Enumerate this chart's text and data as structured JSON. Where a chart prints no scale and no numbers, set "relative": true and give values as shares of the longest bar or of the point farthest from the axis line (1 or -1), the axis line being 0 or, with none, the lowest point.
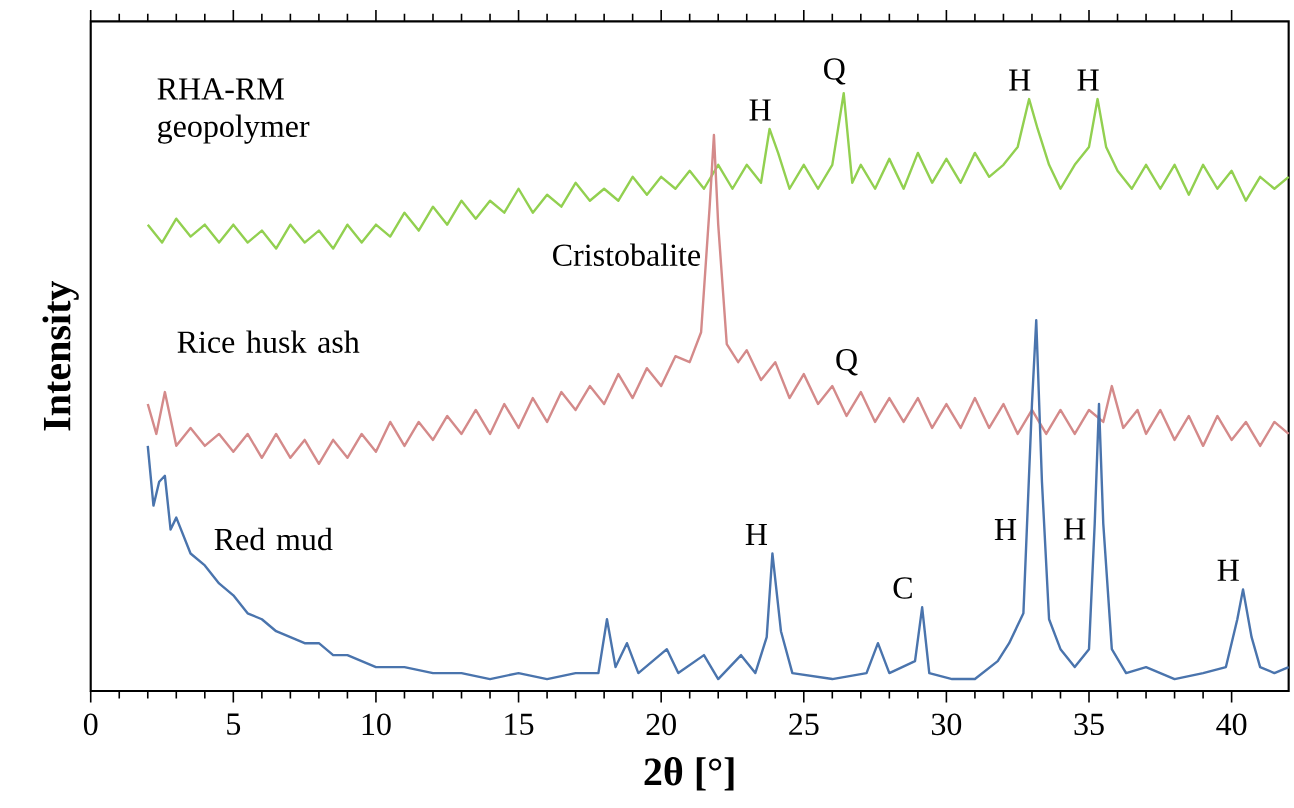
{
  "chart_data": {
    "type": "line",
    "xlabel": "**2θ** [°]",
    "ylabel": "Intensity",
    "relative": true,
    "legend": false,
    "grid": false,
    "tick_labels": "x",
    "xlim": [
      0,
      42
    ],
    "xticks": [
      0,
      5,
      10,
      15,
      20,
      25,
      30,
      35,
      40
    ],
    "series": [
      {
        "name": "RHA-RM geopolymer",
        "color": "#92d050",
        "x": [
          2.0,
          2.5,
          3,
          3.5,
          4,
          4.5,
          5,
          5.5,
          6,
          6.5,
          7,
          7.5,
          8,
          8.5,
          9,
          9.5,
          10,
          10.5,
          11,
          11.5,
          12,
          12.5,
          13,
          13.5,
          14,
          14.5,
          15,
          15.5,
          16,
          16.5,
          17,
          17.5,
          18,
          18.5,
          19,
          19.5,
          20,
          20.5,
          21,
          21.5,
          22,
          22.5,
          23,
          23.5,
          23.8,
          24.1,
          24.5,
          25,
          25.5,
          26,
          26.4,
          26.7,
          27,
          27.5,
          28,
          28.5,
          29,
          29.5,
          30,
          30.5,
          31,
          31.5,
          32,
          32.5,
          32.9,
          33.2,
          33.6,
          34,
          34.5,
          35,
          35.3,
          35.6,
          36,
          36.5,
          37,
          37.5,
          38,
          38.5,
          39,
          39.5,
          40,
          40.5,
          41,
          41.5,
          42
        ],
        "values": [
          0.78,
          0.75,
          0.79,
          0.76,
          0.78,
          0.75,
          0.78,
          0.75,
          0.77,
          0.74,
          0.78,
          0.75,
          0.77,
          0.74,
          0.78,
          0.75,
          0.78,
          0.76,
          0.8,
          0.77,
          0.81,
          0.78,
          0.82,
          0.79,
          0.82,
          0.8,
          0.84,
          0.8,
          0.83,
          0.81,
          0.85,
          0.82,
          0.84,
          0.82,
          0.86,
          0.83,
          0.86,
          0.84,
          0.87,
          0.84,
          0.88,
          0.84,
          0.88,
          0.85,
          0.94,
          0.9,
          0.84,
          0.88,
          0.84,
          0.88,
          1.0,
          0.85,
          0.88,
          0.84,
          0.89,
          0.84,
          0.9,
          0.85,
          0.89,
          0.85,
          0.9,
          0.86,
          0.88,
          0.91,
          0.99,
          0.94,
          0.88,
          0.84,
          0.88,
          0.91,
          0.99,
          0.91,
          0.87,
          0.84,
          0.88,
          0.84,
          0.88,
          0.83,
          0.88,
          0.84,
          0.87,
          0.82,
          0.86,
          0.84,
          0.86
        ]
      },
      {
        "name": "Rice husk ash",
        "color": "#d48a8a",
        "x": [
          2.0,
          2.3,
          2.6,
          3,
          3.5,
          4,
          4.5,
          5,
          5.5,
          6,
          6.5,
          7,
          7.5,
          8,
          8.5,
          9,
          9.5,
          10,
          10.5,
          11,
          11.5,
          12,
          12.5,
          13,
          13.5,
          14,
          14.5,
          15,
          15.5,
          16,
          16.5,
          17,
          17.5,
          18,
          18.5,
          19,
          19.5,
          20,
          20.5,
          21,
          21.4,
          21.7,
          21.85,
          22.0,
          22.3,
          22.7,
          23,
          23.5,
          24,
          24.5,
          25,
          25.5,
          26,
          26.5,
          27,
          27.5,
          28,
          28.5,
          29,
          29.5,
          30,
          30.5,
          31,
          31.5,
          32,
          32.5,
          33,
          33.5,
          34,
          34.5,
          35,
          35.5,
          35.8,
          36.2,
          36.7,
          37,
          37.5,
          38,
          38.5,
          39,
          39.5,
          40,
          40.5,
          41,
          41.5,
          42
        ],
        "values": [
          0.48,
          0.43,
          0.5,
          0.41,
          0.44,
          0.41,
          0.43,
          0.4,
          0.43,
          0.39,
          0.43,
          0.39,
          0.42,
          0.38,
          0.42,
          0.39,
          0.43,
          0.4,
          0.45,
          0.41,
          0.45,
          0.42,
          0.46,
          0.43,
          0.47,
          0.43,
          0.48,
          0.44,
          0.49,
          0.45,
          0.5,
          0.47,
          0.51,
          0.48,
          0.53,
          0.49,
          0.54,
          0.51,
          0.56,
          0.55,
          0.6,
          0.81,
          0.93,
          0.78,
          0.58,
          0.55,
          0.57,
          0.52,
          0.55,
          0.49,
          0.53,
          0.48,
          0.51,
          0.46,
          0.5,
          0.45,
          0.49,
          0.45,
          0.49,
          0.44,
          0.48,
          0.44,
          0.49,
          0.44,
          0.48,
          0.43,
          0.47,
          0.43,
          0.47,
          0.43,
          0.47,
          0.45,
          0.51,
          0.44,
          0.47,
          0.43,
          0.47,
          0.42,
          0.46,
          0.41,
          0.46,
          0.42,
          0.45,
          0.41,
          0.45,
          0.43
        ]
      },
      {
        "name": "Red mud",
        "color": "#4a74ad",
        "x": [
          2.0,
          2.2,
          2.4,
          2.6,
          2.8,
          3,
          3.5,
          4,
          4.5,
          5,
          5.5,
          6,
          6.5,
          7,
          7.5,
          8,
          8.5,
          9,
          10,
          11,
          12,
          13,
          14,
          15,
          16,
          17,
          17.8,
          18.1,
          18.4,
          18.8,
          19.2,
          20.2,
          20.6,
          21.5,
          22,
          22.8,
          23.3,
          23.7,
          23.9,
          24.2,
          24.6,
          26,
          27.2,
          27.6,
          28,
          28.9,
          29.15,
          29.4,
          30.2,
          31,
          31.8,
          32.2,
          32.7,
          33.0,
          33.15,
          33.35,
          33.6,
          34.0,
          34.5,
          35.0,
          35.2,
          35.35,
          35.5,
          35.8,
          36.3,
          37,
          38,
          39,
          39.8,
          40.2,
          40.4,
          40.7,
          41,
          41.5,
          42
        ],
        "values": [
          0.41,
          0.31,
          0.35,
          0.36,
          0.27,
          0.29,
          0.23,
          0.21,
          0.18,
          0.16,
          0.13,
          0.12,
          0.1,
          0.09,
          0.08,
          0.08,
          0.06,
          0.06,
          0.04,
          0.04,
          0.03,
          0.03,
          0.02,
          0.03,
          0.02,
          0.03,
          0.03,
          0.12,
          0.04,
          0.08,
          0.03,
          0.07,
          0.03,
          0.06,
          0.02,
          0.06,
          0.03,
          0.09,
          0.23,
          0.1,
          0.03,
          0.02,
          0.03,
          0.08,
          0.03,
          0.05,
          0.14,
          0.03,
          0.02,
          0.02,
          0.05,
          0.08,
          0.13,
          0.48,
          0.62,
          0.35,
          0.12,
          0.07,
          0.04,
          0.07,
          0.28,
          0.48,
          0.28,
          0.07,
          0.03,
          0.04,
          0.02,
          0.03,
          0.04,
          0.12,
          0.17,
          0.09,
          0.04,
          0.03,
          0.04
        ]
      }
    ],
    "annotations": [
      {
        "text": "H",
        "x": 23.8,
        "y": 0.94
      },
      {
        "text": "Q",
        "x": 26.4,
        "y": 1.0
      },
      {
        "text": "H",
        "x": 32.9,
        "y": 0.99
      },
      {
        "text": "H",
        "x": 35.3,
        "y": 0.99
      },
      {
        "text": "Cristobalite",
        "x": 21.7,
        "y": 0.81
      },
      {
        "text": "Q",
        "x": 26.5,
        "y": 0.46
      },
      {
        "text": "H",
        "x": 23.9,
        "y": 0.23
      },
      {
        "text": "C",
        "x": 29.15,
        "y": 0.14
      },
      {
        "text": "H",
        "x": 32.87,
        "y": 0.27
      },
      {
        "text": "H",
        "x": 35.2,
        "y": 0.28
      },
      {
        "text": "H",
        "x": 40.4,
        "y": 0.17
      }
    ]
  }
}
